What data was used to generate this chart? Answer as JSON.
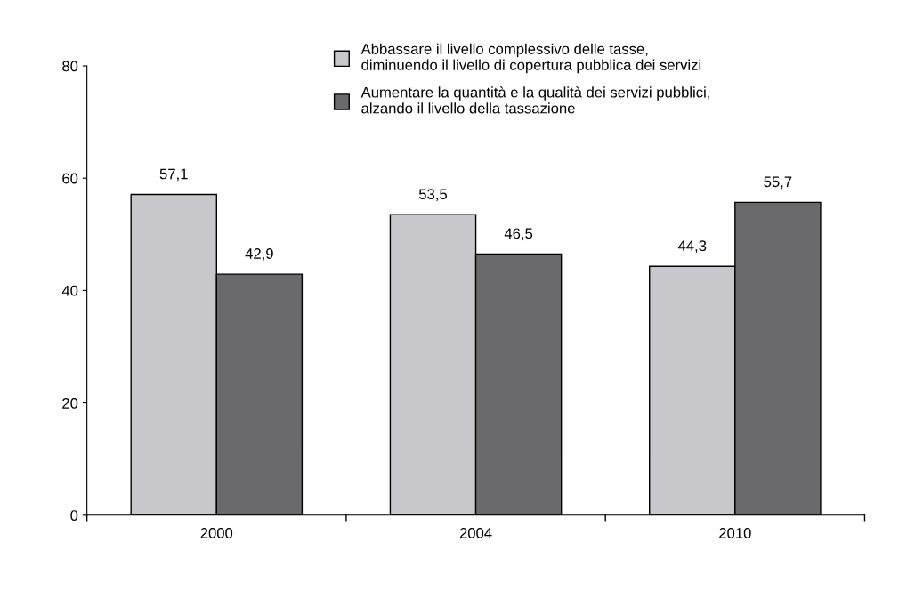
{
  "chart_data": {
    "type": "bar",
    "categories": [
      "2000",
      "2004",
      "2010"
    ],
    "series": [
      {
        "name": "Abbassare il livello complessivo delle tasse,\ndiminuendo il livello di copertura pubblica dei servizi",
        "color": "#c8c8cc",
        "values": [
          57.1,
          53.5,
          44.3
        ],
        "value_labels": [
          "57,1",
          "53,5",
          "44,3"
        ]
      },
      {
        "name": "Aumentare la quantità e la qualità dei servizi pubblici,\nalzando il livello della tassazione",
        "color": "#6a6a6c",
        "values": [
          42.9,
          46.5,
          55.7
        ],
        "value_labels": [
          "42,9",
          "46,5",
          "55,7"
        ]
      }
    ],
    "ylim": [
      0,
      80
    ],
    "yticks": [
      0,
      20,
      40,
      60,
      80
    ],
    "grid": false,
    "legend": "top"
  }
}
